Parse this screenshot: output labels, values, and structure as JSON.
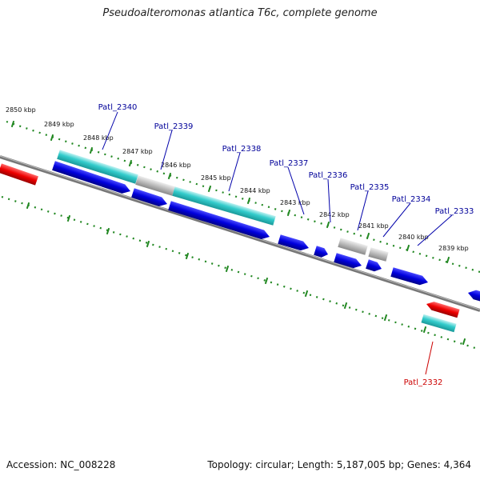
{
  "title": "Pseudoalteromonas atlantica T6c, complete genome",
  "footer": {
    "accession": "Accession: NC_008228",
    "summary": "Topology: circular; Length: 5,187,005 bp; Genes: 4,364"
  },
  "kbp_labels": [
    "2850 kbp",
    "2849 kbp",
    "2848 kbp",
    "2847 kbp",
    "2846 kbp",
    "2845 kbp",
    "2844 kbp",
    "2843 kbp",
    "2842 kbp",
    "2841 kbp",
    "2840 kbp",
    "2839 kbp"
  ],
  "gene_labels": [
    "Patl_2340",
    "Patl_2339",
    "Patl_2338",
    "Patl_2337",
    "Patl_2336",
    "Patl_2335",
    "Patl_2334",
    "Patl_2333",
    "Patl_2332"
  ],
  "colors": {
    "cds_forward": "#0000dd",
    "cds_reverse": "#ee0000",
    "gene_feature": "#33cccc",
    "pseudo_feature": "#bbbbbb",
    "backbone": "#777777",
    "ticks": "#228822",
    "label_forward": "#000099",
    "label_reverse": "#cc0000"
  }
}
